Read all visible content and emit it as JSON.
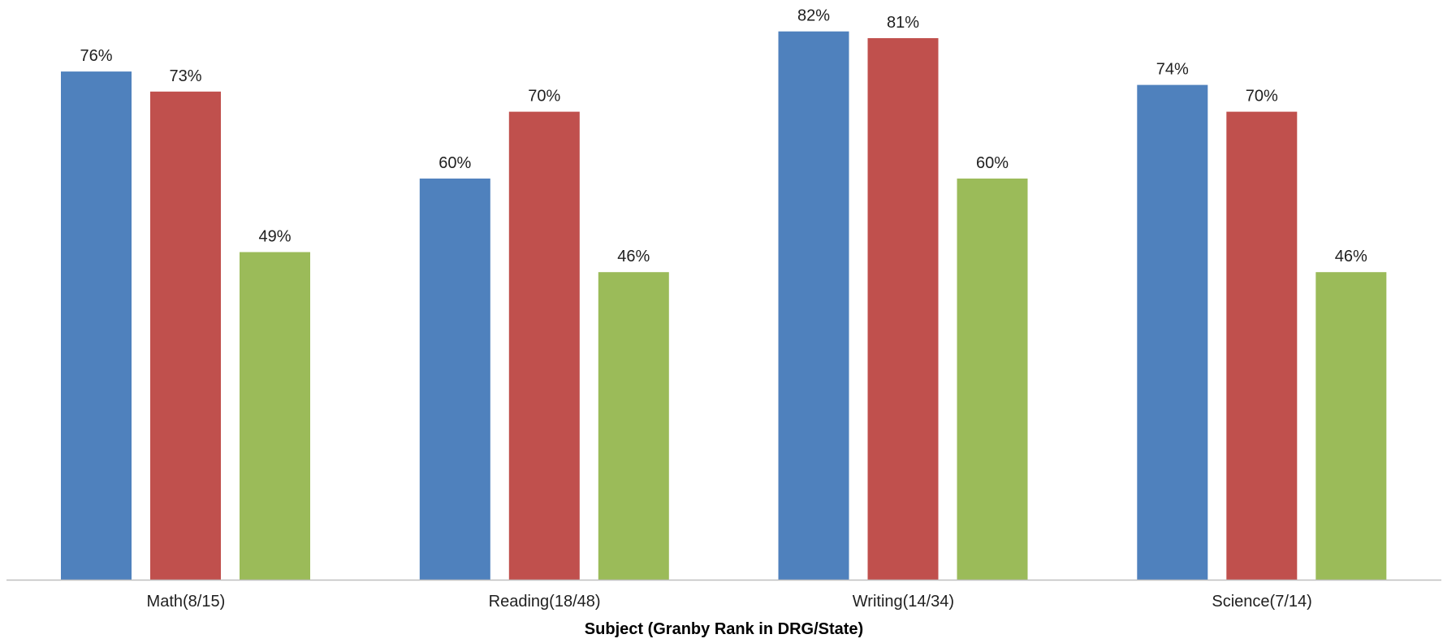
{
  "chart_data": {
    "type": "bar",
    "title": "",
    "xlabel": "Subject (Granby Rank in DRG/State)",
    "ylabel": "",
    "categories": [
      "Math(8/15)",
      "Reading(18/48)",
      "Writing(14/34)",
      "Science(7/14)"
    ],
    "series": [
      {
        "color": "#4f81bd",
        "values": [
          76,
          60,
          82,
          74
        ],
        "labels": [
          "76%",
          "60%",
          "82%",
          "74%"
        ]
      },
      {
        "color": "#c0504d",
        "values": [
          73,
          70,
          81,
          70
        ],
        "labels": [
          "73%",
          "70%",
          "81%",
          "70%"
        ]
      },
      {
        "color": "#9bbb59",
        "values": [
          49,
          46,
          60,
          46
        ],
        "labels": [
          "49%",
          "46%",
          "60%",
          "46%"
        ]
      }
    ],
    "ylim": [
      0,
      100
    ],
    "value_unit": "%",
    "grid": false,
    "legend": "none",
    "axis_line_color": "#bfbfbf"
  }
}
